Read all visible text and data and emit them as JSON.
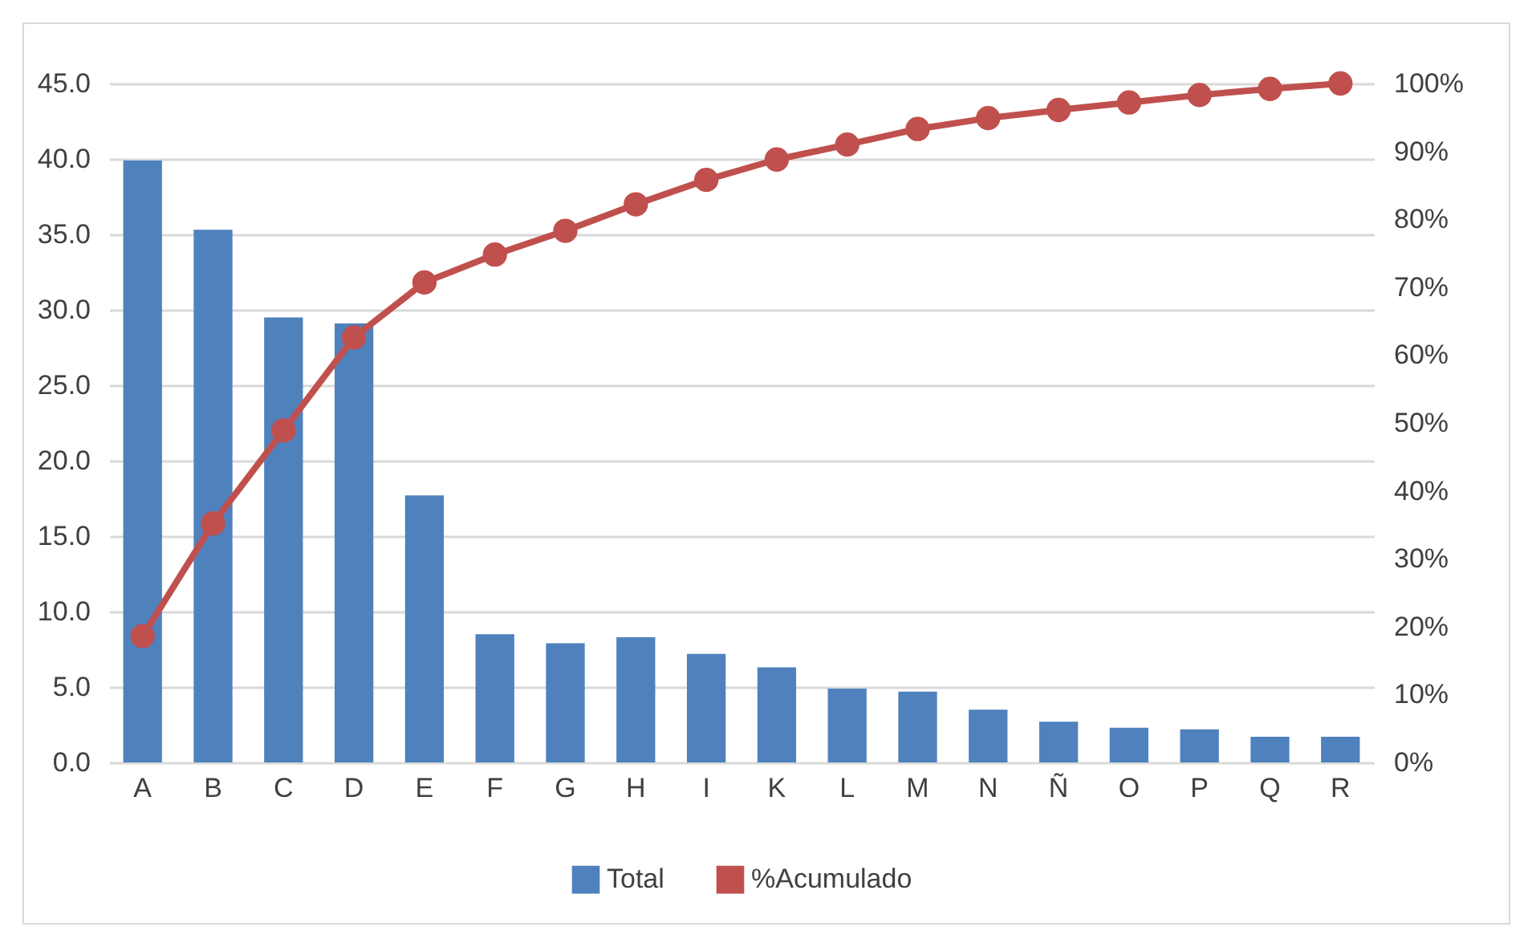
{
  "chart_data": {
    "type": "bar",
    "categories": [
      "A",
      "B",
      "C",
      "D",
      "E",
      "F",
      "G",
      "H",
      "I",
      "K",
      "L",
      "M",
      "N",
      "Ñ",
      "O",
      "P",
      "Q",
      "R"
    ],
    "series": [
      {
        "name": "Total",
        "color": "#4f81bd",
        "values": [
          39.9,
          35.3,
          29.5,
          29.1,
          17.7,
          8.5,
          7.9,
          8.3,
          7.2,
          6.3,
          4.9,
          4.7,
          3.5,
          2.7,
          2.3,
          2.2,
          1.7,
          1.7
        ]
      },
      {
        "name": "%Acumulado",
        "type": "line",
        "axis": "y2",
        "color": "#c0504d",
        "marker": "circle",
        "values": [
          18.6,
          35.2,
          48.9,
          62.6,
          70.7,
          74.8,
          78.3,
          82.2,
          85.8,
          88.8,
          91.0,
          93.3,
          94.9,
          96.1,
          97.2,
          98.3,
          99.2,
          100
        ]
      }
    ],
    "ylim": [
      0,
      45
    ],
    "yticks": [
      {
        "value": 0,
        "label": "0.0"
      },
      {
        "value": 5,
        "label": "5.0"
      },
      {
        "value": 10,
        "label": "10.0"
      },
      {
        "value": 15,
        "label": "15.0"
      },
      {
        "value": 20,
        "label": "20.0"
      },
      {
        "value": 25,
        "label": "25.0"
      },
      {
        "value": 30,
        "label": "30.0"
      },
      {
        "value": 35,
        "label": "35.0"
      },
      {
        "value": 40,
        "label": "40.0"
      },
      {
        "value": 45,
        "label": "45.0"
      }
    ],
    "y2lim": [
      0,
      100
    ],
    "y2ticks": [
      {
        "value": 0,
        "label": "0%"
      },
      {
        "value": 10,
        "label": "10%"
      },
      {
        "value": 20,
        "label": "20%"
      },
      {
        "value": 30,
        "label": "30%"
      },
      {
        "value": 40,
        "label": "40%"
      },
      {
        "value": 50,
        "label": "50%"
      },
      {
        "value": 60,
        "label": "60%"
      },
      {
        "value": 70,
        "label": "70%"
      },
      {
        "value": 80,
        "label": "80%"
      },
      {
        "value": 90,
        "label": "90%"
      },
      {
        "value": 100,
        "label": "100%"
      }
    ],
    "grid": "y",
    "legend": "bottom"
  }
}
